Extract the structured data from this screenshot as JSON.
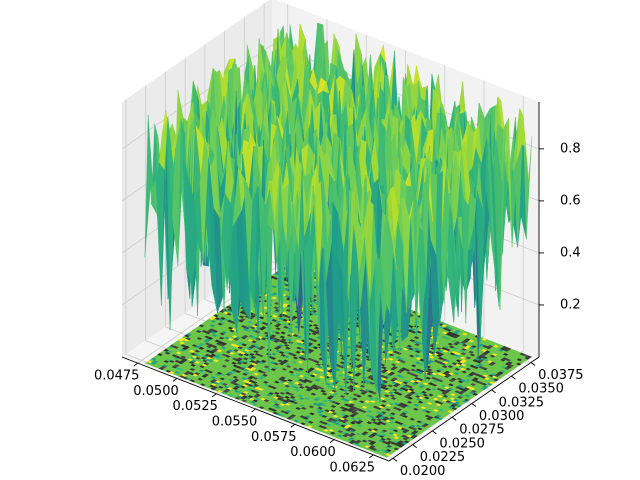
{
  "chart_data": {
    "type": "surface3d",
    "title": "",
    "xlabel": "",
    "ylabel": "",
    "zlabel": "",
    "x_ticks": [
      "0.0475",
      "0.0500",
      "0.0525",
      "0.0550",
      "0.0575",
      "0.0600",
      "0.0625"
    ],
    "x_tick_values": [
      0.0475,
      0.05,
      0.0525,
      0.055,
      0.0575,
      0.06,
      0.0625
    ],
    "y_ticks": [
      "0.0200",
      "0.0225",
      "0.0250",
      "0.0275",
      "0.0300",
      "0.0325",
      "0.0350",
      "0.0375"
    ],
    "y_tick_values": [
      0.02,
      0.0225,
      0.025,
      0.0275,
      0.03,
      0.0325,
      0.035,
      0.0375
    ],
    "z_ticks": [
      "0.2",
      "0.4",
      "0.6",
      "0.8"
    ],
    "z_tick_values": [
      0.2,
      0.4,
      0.6,
      0.8
    ],
    "xlim": [
      0.0465,
      0.0635
    ],
    "ylim": [
      0.0195,
      0.0385
    ],
    "zlim": [
      0.0,
      0.98
    ],
    "colormap": "viridis",
    "series": [
      {
        "kind": "random-surface",
        "z_range": [
          0.0,
          0.98
        ]
      },
      {
        "kind": "filled-contour-floor",
        "z_offset": 0.0
      }
    ],
    "grid": true,
    "legend": "none",
    "colors": {
      "pane_left": "#ebebeb",
      "pane_right": "#f2f2f2",
      "pane_floor": "#f5f5f5",
      "grid": "#cccccc",
      "floor_base": "#6cc64a"
    }
  }
}
